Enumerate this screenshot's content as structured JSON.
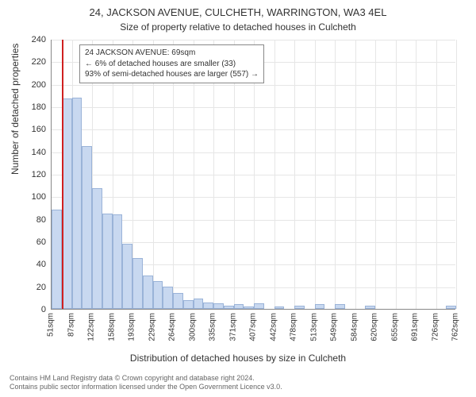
{
  "title_main": "24, JACKSON AVENUE, CULCHETH, WARRINGTON, WA3 4EL",
  "title_sub": "Size of property relative to detached houses in Culcheth",
  "ylabel": "Number of detached properties",
  "xlabel": "Distribution of detached houses by size in Culcheth",
  "footer_line1": "Contains HM Land Registry data © Crown copyright and database right 2024.",
  "footer_line2": "Contains public sector information licensed under the Open Government Licence v3.0.",
  "chart": {
    "type": "histogram",
    "ylim": [
      0,
      240
    ],
    "ytick_step": 20,
    "background_color": "#ffffff",
    "grid_color": "#e6e6e6",
    "axis_color": "#888888",
    "bar_fill": "#c8d8f0",
    "bar_stroke": "#9ab3d8",
    "marker_color": "#d02020",
    "marker_x_value": 69,
    "x_tick_labels": [
      "51sqm",
      "87sqm",
      "122sqm",
      "158sqm",
      "193sqm",
      "229sqm",
      "264sqm",
      "300sqm",
      "335sqm",
      "371sqm",
      "407sqm",
      "442sqm",
      "478sqm",
      "513sqm",
      "549sqm",
      "584sqm",
      "620sqm",
      "655sqm",
      "691sqm",
      "726sqm",
      "762sqm"
    ],
    "x_tick_step": 35.55,
    "x_start": 51,
    "bar_width_sqm": 17.775,
    "bars": [
      {
        "x": 51.0,
        "h": 88
      },
      {
        "x": 68.8,
        "h": 187
      },
      {
        "x": 86.6,
        "h": 188
      },
      {
        "x": 104.3,
        "h": 145
      },
      {
        "x": 122.1,
        "h": 107
      },
      {
        "x": 139.9,
        "h": 85
      },
      {
        "x": 157.7,
        "h": 84
      },
      {
        "x": 175.4,
        "h": 58
      },
      {
        "x": 193.2,
        "h": 45
      },
      {
        "x": 211.0,
        "h": 30
      },
      {
        "x": 228.8,
        "h": 25
      },
      {
        "x": 246.5,
        "h": 20
      },
      {
        "x": 264.3,
        "h": 14
      },
      {
        "x": 282.1,
        "h": 8
      },
      {
        "x": 299.9,
        "h": 9
      },
      {
        "x": 317.6,
        "h": 6
      },
      {
        "x": 335.4,
        "h": 5
      },
      {
        "x": 353.2,
        "h": 3
      },
      {
        "x": 371.0,
        "h": 4
      },
      {
        "x": 388.7,
        "h": 2
      },
      {
        "x": 406.5,
        "h": 5
      },
      {
        "x": 424.3,
        "h": 0
      },
      {
        "x": 442.1,
        "h": 2
      },
      {
        "x": 459.8,
        "h": 0
      },
      {
        "x": 477.6,
        "h": 3
      },
      {
        "x": 495.4,
        "h": 0
      },
      {
        "x": 513.2,
        "h": 4
      },
      {
        "x": 530.9,
        "h": 0
      },
      {
        "x": 548.7,
        "h": 4
      },
      {
        "x": 566.5,
        "h": 0
      },
      {
        "x": 584.3,
        "h": 0
      },
      {
        "x": 602.0,
        "h": 3
      },
      {
        "x": 619.8,
        "h": 0
      },
      {
        "x": 637.6,
        "h": 0
      },
      {
        "x": 655.4,
        "h": 0
      },
      {
        "x": 673.1,
        "h": 0
      },
      {
        "x": 690.9,
        "h": 0
      },
      {
        "x": 708.7,
        "h": 0
      },
      {
        "x": 726.5,
        "h": 0
      },
      {
        "x": 744.2,
        "h": 3
      }
    ],
    "annotation": {
      "lines": [
        "24 JACKSON AVENUE: 69sqm",
        "← 6% of detached houses are smaller (33)",
        "93% of semi-detached houses are larger (557) →"
      ],
      "text_color": "#333333",
      "border_color": "#888888",
      "fontsize": 10
    }
  }
}
